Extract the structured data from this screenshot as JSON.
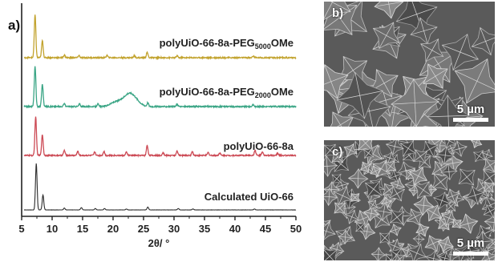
{
  "panels": {
    "a": "a)",
    "b": "b)",
    "c": "c)"
  },
  "sem": {
    "b": {
      "scale_label": "5 µm"
    },
    "c": {
      "scale_label": "5 µm"
    }
  },
  "chart_data": {
    "type": "line",
    "title": "",
    "xlabel": "2θ/ °",
    "ylabel": "",
    "xlim": [
      5,
      50
    ],
    "xticks": [
      5,
      10,
      15,
      20,
      25,
      30,
      35,
      40,
      45,
      50
    ],
    "grid": false,
    "legend": "none",
    "series": [
      {
        "name": "Calculated UiO-66",
        "color": "#2b2b2b",
        "peaks": [
          [
            7.4,
            1.0
          ],
          [
            8.5,
            0.32
          ],
          [
            12.0,
            0.04
          ],
          [
            14.8,
            0.05
          ],
          [
            17.1,
            0.03
          ],
          [
            18.6,
            0.03
          ],
          [
            22.2,
            0.02
          ],
          [
            25.7,
            0.06
          ],
          [
            30.7,
            0.03
          ],
          [
            33.1,
            0.02
          ],
          [
            43.2,
            0.02
          ]
        ]
      },
      {
        "name_parts": [
          "polyUiO-66-8a"
        ],
        "color": "#cc4a55",
        "peaks": [
          [
            7.3,
            0.92
          ],
          [
            8.4,
            0.5
          ],
          [
            12.0,
            0.12
          ],
          [
            14.2,
            0.1
          ],
          [
            17.0,
            0.08
          ],
          [
            18.5,
            0.1
          ],
          [
            22.2,
            0.08
          ],
          [
            25.6,
            0.24
          ],
          [
            28.2,
            0.07
          ],
          [
            30.5,
            0.1
          ],
          [
            33.0,
            0.09
          ],
          [
            35.6,
            0.07
          ],
          [
            37.5,
            0.06
          ],
          [
            43.3,
            0.12
          ],
          [
            44.5,
            0.08
          ],
          [
            47.0,
            0.05
          ]
        ]
      },
      {
        "name_parts": [
          "polyUiO-66-8a-PEG",
          "2000",
          "OMe"
        ],
        "color": "#3aa585",
        "peaks": [
          [
            7.2,
            0.9
          ],
          [
            8.4,
            0.5
          ],
          [
            12.0,
            0.07
          ],
          [
            14.5,
            0.06
          ],
          [
            17.5,
            0.06
          ],
          [
            20.5,
            0.1
          ],
          [
            22.5,
            0.22
          ],
          [
            23.5,
            0.12
          ],
          [
            25.7,
            0.08
          ],
          [
            30.5,
            0.05
          ],
          [
            43.0,
            0.04
          ]
        ]
      },
      {
        "name_parts": [
          "polyUiO-66-8a-PEG",
          "5000",
          "OMe"
        ],
        "color": "#c2a32e",
        "peaks": [
          [
            7.2,
            0.95
          ],
          [
            8.4,
            0.38
          ],
          [
            12.0,
            0.06
          ],
          [
            14.4,
            0.05
          ],
          [
            19.0,
            0.05
          ],
          [
            23.5,
            0.05
          ],
          [
            25.6,
            0.12
          ],
          [
            30.5,
            0.04
          ],
          [
            43.0,
            0.04
          ]
        ]
      }
    ]
  }
}
